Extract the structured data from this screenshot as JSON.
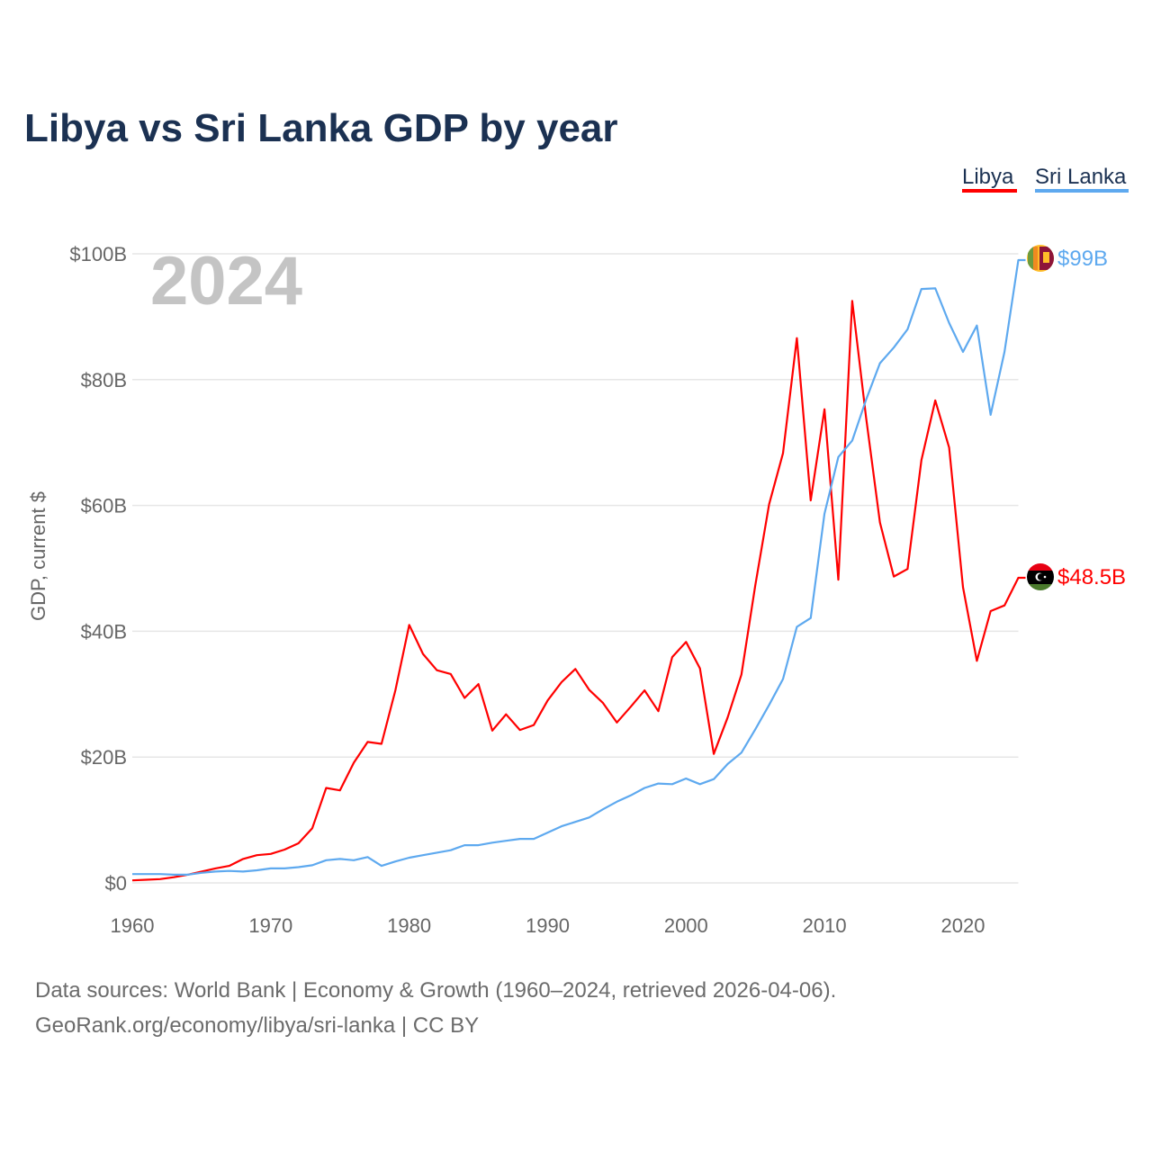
{
  "title": "Libya vs Sri Lanka GDP by year",
  "current_year": "2024",
  "footer": {
    "line1": "Data sources: World Bank | Economy & Growth (1960–2024, retrieved 2026-04-06).",
    "line2": "GeoRank.org/economy/libya/sri-lanka | CC BY"
  },
  "chart_data": {
    "type": "line",
    "title": "Libya vs Sri Lanka GDP by year",
    "xlabel": "",
    "ylabel": "GDP, current $",
    "xlim": [
      1960,
      2024
    ],
    "ylim": [
      0,
      100
    ],
    "x_ticks": [
      1960,
      1970,
      1980,
      1990,
      2000,
      2010,
      2020
    ],
    "x_tick_labels": [
      "1960",
      "1970",
      "1980",
      "1990",
      "2000",
      "2010",
      "2020"
    ],
    "y_ticks": [
      0,
      20,
      40,
      60,
      80,
      100
    ],
    "y_tick_labels": [
      "$0",
      "$20B",
      "$40B",
      "$60B",
      "$80B",
      "$100B"
    ],
    "grid": true,
    "legend_placement": "top-right",
    "x_start": 1960,
    "series": [
      {
        "name": "Libya",
        "color": "#ff0000",
        "end_label": "$48.5B",
        "flag": "libya-flag",
        "values": [
          0.4,
          0.5,
          0.6,
          0.9,
          1.3,
          1.8,
          2.3,
          2.7,
          3.8,
          4.4,
          4.6,
          5.3,
          6.3,
          8.7,
          15.1,
          14.7,
          19.1,
          22.4,
          22.1,
          30.6,
          41.0,
          36.4,
          33.8,
          33.2,
          29.4,
          31.6,
          24.2,
          26.8,
          24.3,
          25.1,
          29.0,
          31.9,
          34.0,
          30.7,
          28.6,
          25.5,
          28.0,
          30.6,
          27.3,
          35.9,
          38.3,
          34.1,
          20.5,
          26.3,
          33.1,
          47.3,
          60.2,
          68.3,
          86.6,
          60.8,
          75.3,
          48.2,
          92.5,
          74.0,
          57.3,
          48.7,
          49.9,
          67.2,
          76.7,
          69.2,
          47.0,
          35.3,
          43.2,
          44.1,
          48.5
        ]
      },
      {
        "name": "Sri Lanka",
        "color": "#5ea9ef",
        "end_label": "$99B",
        "flag": "sri-lanka-flag",
        "values": [
          1.4,
          1.4,
          1.4,
          1.3,
          1.3,
          1.6,
          1.8,
          1.9,
          1.8,
          2.0,
          2.3,
          2.3,
          2.5,
          2.8,
          3.6,
          3.8,
          3.6,
          4.1,
          2.7,
          3.4,
          4.0,
          4.4,
          4.8,
          5.2,
          6.0,
          6.0,
          6.4,
          6.7,
          7.0,
          7.0,
          8.0,
          9.0,
          9.7,
          10.4,
          11.7,
          12.9,
          13.9,
          15.1,
          15.8,
          15.7,
          16.6,
          15.7,
          16.5,
          18.9,
          20.7,
          24.4,
          28.3,
          32.4,
          40.7,
          42.1,
          58.7,
          67.7,
          70.3,
          76.8,
          82.6,
          85.1,
          88.0,
          94.4,
          94.5,
          89.0,
          84.4,
          88.6,
          74.4,
          84.4,
          99.0
        ]
      }
    ]
  }
}
